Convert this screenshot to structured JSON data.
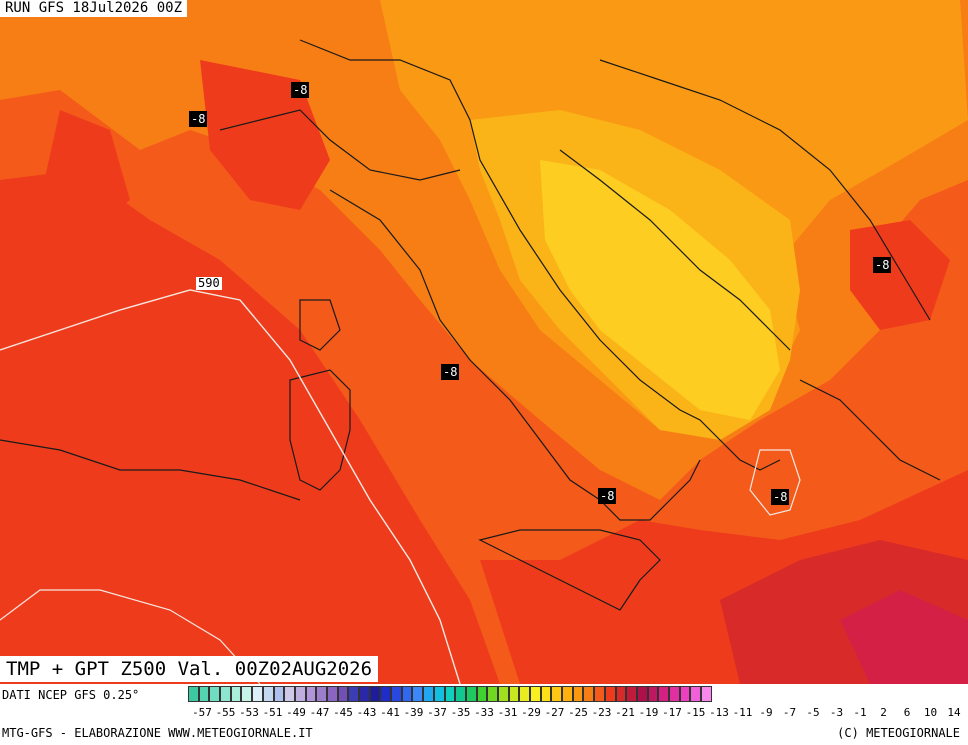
{
  "header": {
    "run": "RUN GFS 18Jul2026 00Z"
  },
  "title": {
    "valid": "TMP + GPT Z500 Val. 00Z02AUG2026"
  },
  "map": {
    "isobar_label": "590",
    "contour_labels": [
      "-8",
      "-8",
      "-8",
      "-8",
      "-8",
      "-8",
      "-8"
    ],
    "colors": {
      "deep": "#d92a2a",
      "red": "#ee3b1c",
      "redorange": "#f45a1a",
      "orange": "#f77e15",
      "lightorange": "#fa9a14",
      "amber": "#fbb418",
      "yellow": "#fdcd22",
      "magenta": "#d42044"
    }
  },
  "legend": {
    "source": "DATI NCEP GFS 0.25°",
    "ticks": [
      "-57",
      "-55",
      "-53",
      "-51",
      "-49",
      "-47",
      "-45",
      "-43",
      "-41",
      "-39",
      "-37",
      "-35",
      "-33",
      "-31",
      "-29",
      "-27",
      "-25",
      "-23",
      "-21",
      "-19",
      "-17",
      "-15",
      "-13",
      "-11",
      "-9",
      "-7",
      "-5",
      "-3",
      "-1",
      "2",
      "6",
      "10",
      "14"
    ],
    "swatches": [
      "#3cc8a0",
      "#55d4b0",
      "#70ddc0",
      "#8ee6d0",
      "#aaeedc",
      "#c6f4e8",
      "#dceef8",
      "#c4d8f2",
      "#aec0ec",
      "#d0c8e8",
      "#c0aee0",
      "#b096d8",
      "#9c7ecc",
      "#8a66c0",
      "#7050b4",
      "#3c3cb4",
      "#2828a8",
      "#1c1c9c",
      "#202cc8",
      "#2848e0",
      "#3068f0",
      "#3c88f8",
      "#20a8f0",
      "#14c0e0",
      "#10d0c0",
      "#10c890",
      "#20c860",
      "#40d030",
      "#70d820",
      "#a0e020",
      "#c8e820",
      "#e8ec20",
      "#f8f020",
      "#ffe018",
      "#ffc814",
      "#fdb010",
      "#fa9812",
      "#f77e15",
      "#f45a1a",
      "#ee3b1c",
      "#d92a2a",
      "#c21a3a",
      "#b0104a",
      "#c01860",
      "#d42080",
      "#e030a0",
      "#ec40c0",
      "#f060d8",
      "#f888ec"
    ],
    "footer_left": "MTG-GFS - ELABORAZIONE WWW.METEOGIORNALE.IT",
    "footer_right": "(C) METEOGIORNALE"
  }
}
